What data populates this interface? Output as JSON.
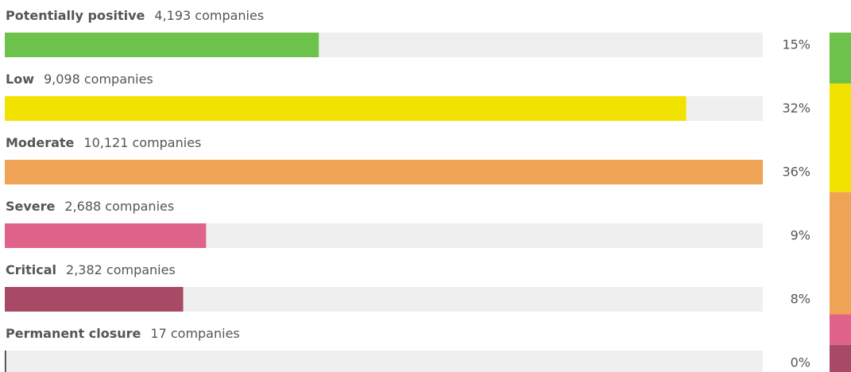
{
  "chart_data": {
    "type": "bar",
    "categories": [
      "Potentially positive",
      "Low",
      "Moderate",
      "Severe",
      "Critical",
      "Permanent closure"
    ],
    "values": [
      4193,
      9098,
      10121,
      2688,
      2382,
      17
    ],
    "value_labels": [
      "4,193 companies",
      "9,098 companies",
      "10,121 companies",
      "2,688 companies",
      "2,382 companies",
      "17 companies"
    ],
    "shares": [
      15,
      32,
      36,
      9,
      8,
      0
    ],
    "share_labels": [
      "15%",
      "32%",
      "36%",
      "9%",
      "8%",
      "0%"
    ],
    "colors": [
      "#6cc24a",
      "#f2e200",
      "#eea355",
      "#e0648a",
      "#a84a66",
      "#333333"
    ],
    "xlim": [
      0,
      10121
    ],
    "share_lim": [
      0,
      100
    ]
  }
}
